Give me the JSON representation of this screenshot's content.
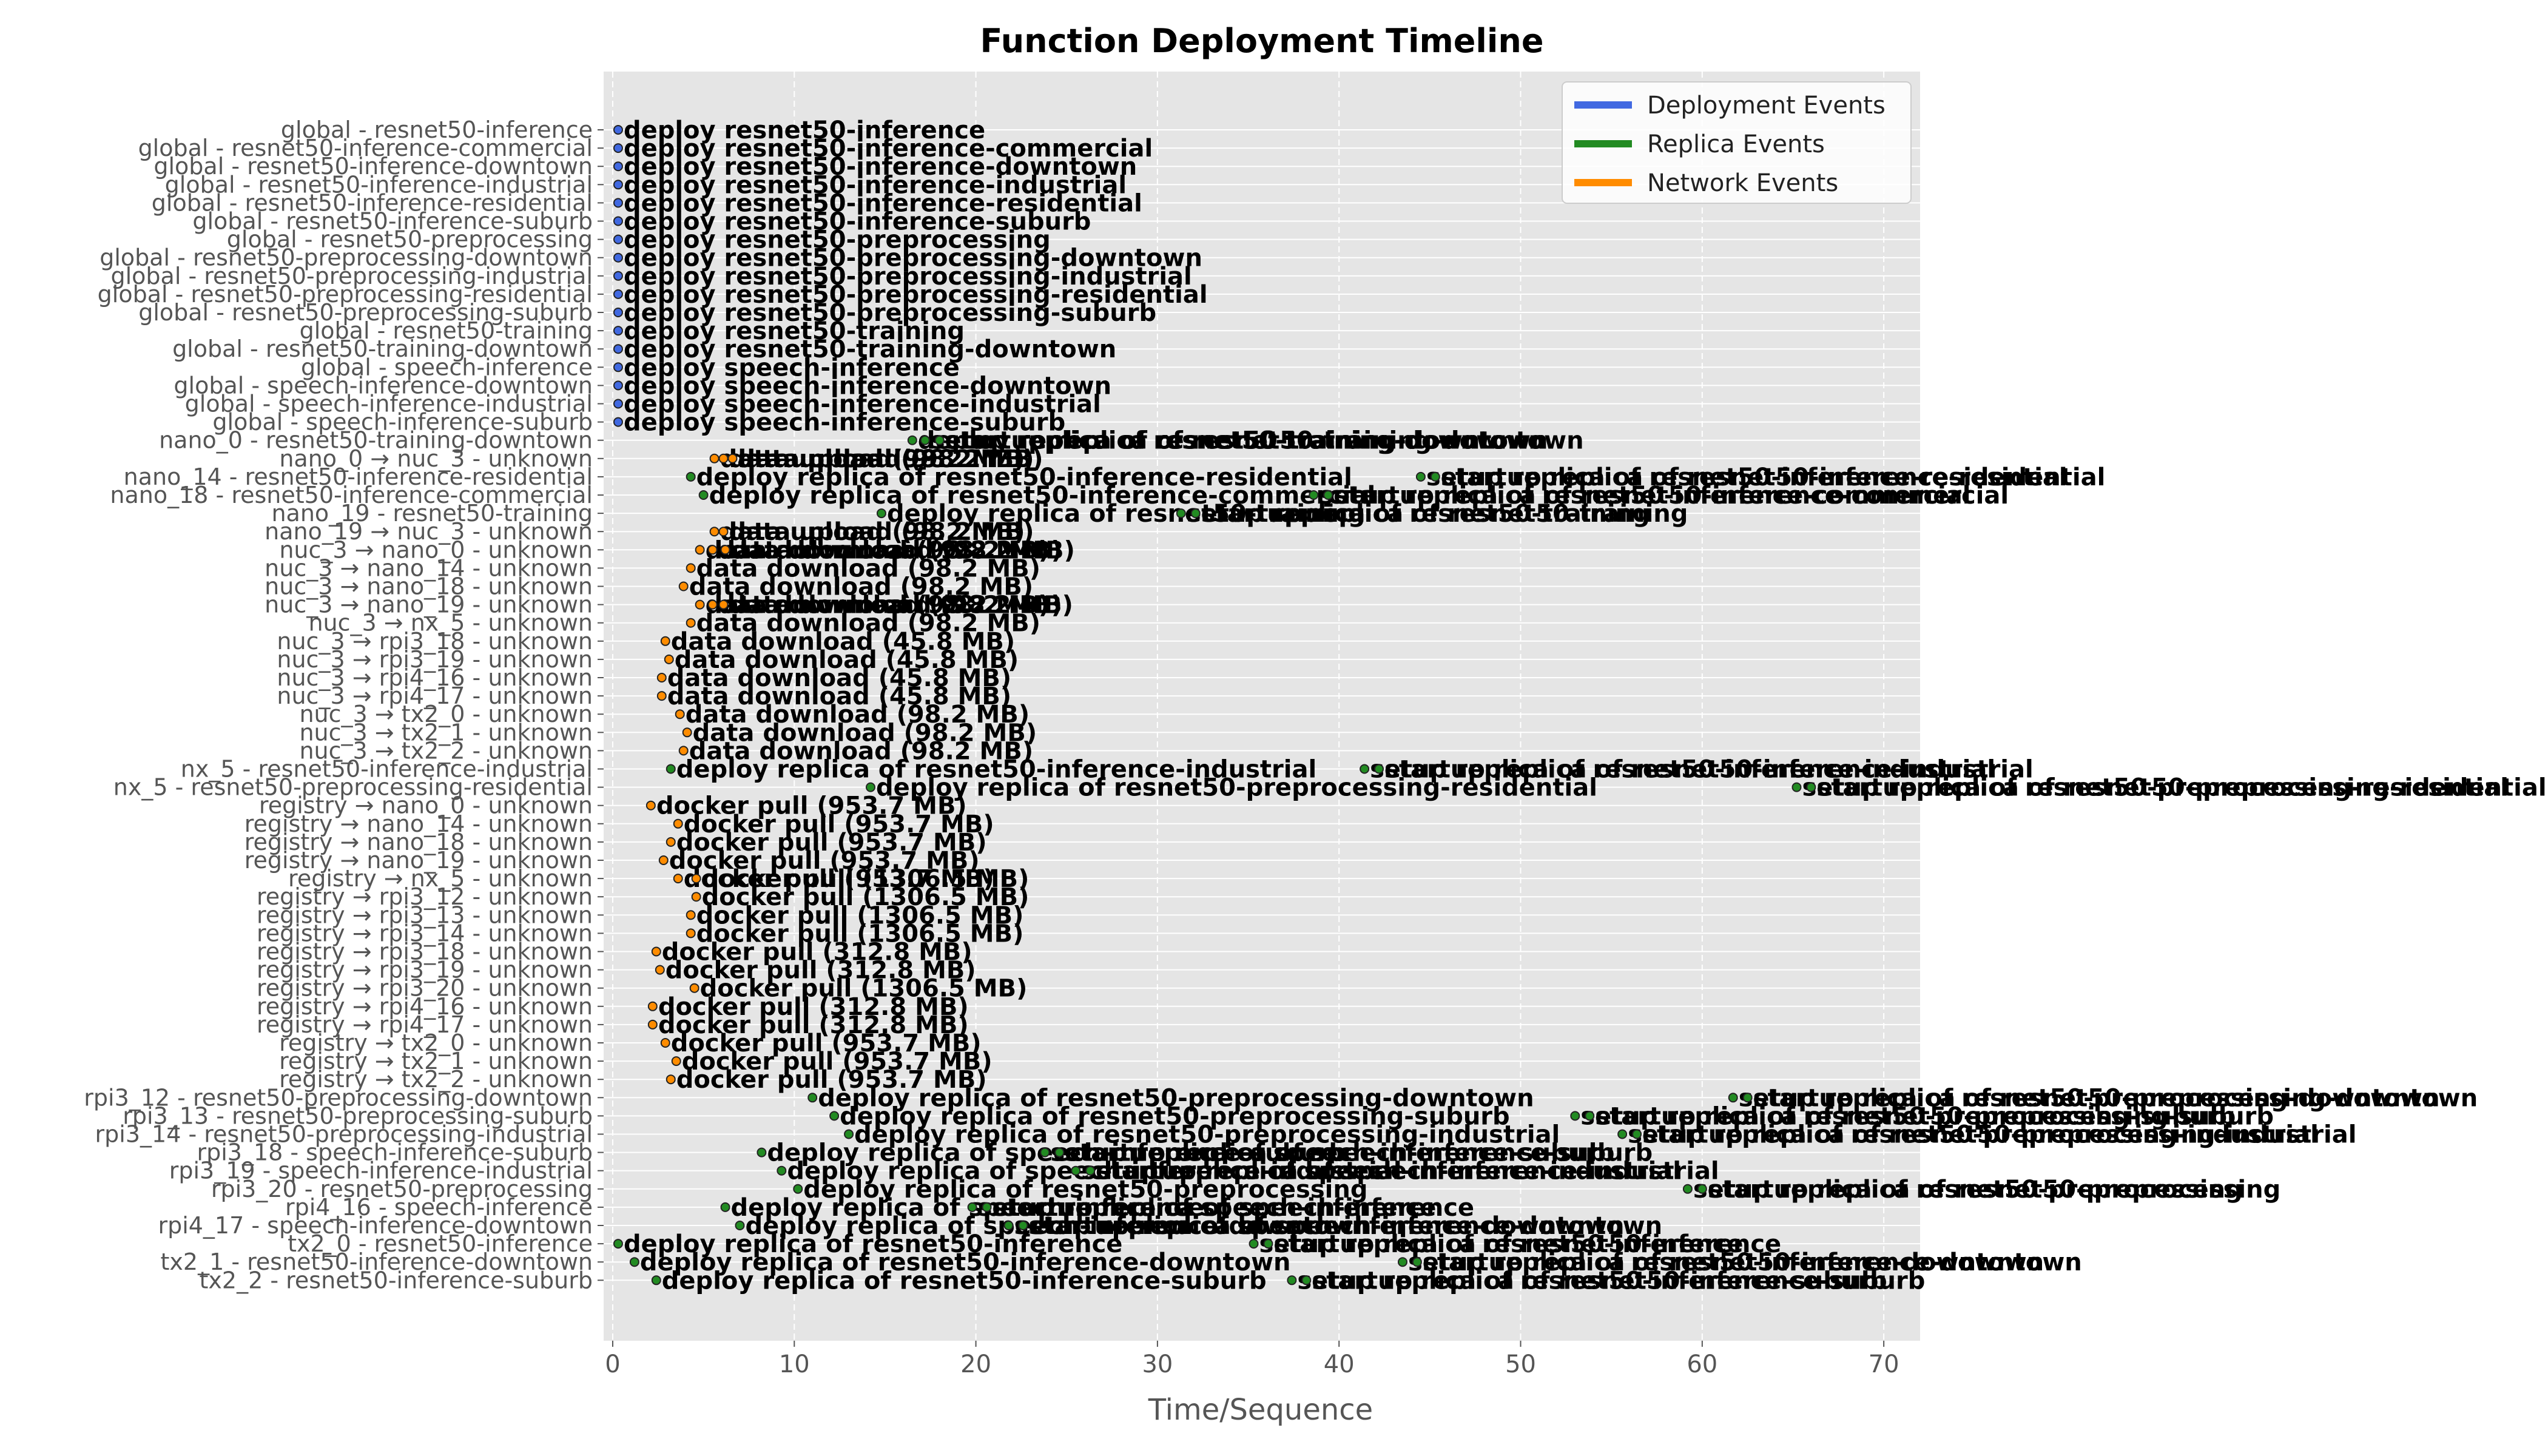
{
  "chart_data": {
    "type": "timeline",
    "title": "Function Deployment Timeline",
    "xlabel": "Time/Sequence",
    "ylabel": "",
    "xlim": [
      -0.5,
      72
    ],
    "xticks": [
      0,
      10,
      20,
      30,
      40,
      50,
      60,
      70
    ],
    "grid": true,
    "legend_position": "top-right",
    "colors": {
      "deployment": "#4169e1",
      "replica": "#228b22",
      "network": "#ff8c00",
      "plot_bg": "#e5e5e5",
      "grid": "#ffffff",
      "marker_edge": "#222222"
    },
    "legend": [
      {
        "label": "Deployment Events",
        "color": "#4169e1"
      },
      {
        "label": "Replica Events",
        "color": "#228b22"
      },
      {
        "label": "Network Events",
        "color": "#ff8c00"
      }
    ],
    "rows": [
      "global - resnet50-inference",
      "global - resnet50-inference-commercial",
      "global - resnet50-inference-downtown",
      "global - resnet50-inference-industrial",
      "global - resnet50-inference-residential",
      "global - resnet50-inference-suburb",
      "global - resnet50-preprocessing",
      "global - resnet50-preprocessing-downtown",
      "global - resnet50-preprocessing-industrial",
      "global - resnet50-preprocessing-residential",
      "global - resnet50-preprocessing-suburb",
      "global - resnet50-training",
      "global - resnet50-training-downtown",
      "global - speech-inference",
      "global - speech-inference-downtown",
      "global - speech-inference-industrial",
      "global - speech-inference-suburb",
      "nano_0 - resnet50-training-downtown",
      "nano_0 → nuc_3 - unknown",
      "nano_14 - resnet50-inference-residential",
      "nano_18 - resnet50-inference-commercial",
      "nano_19 - resnet50-training",
      "nano_19 → nuc_3 - unknown",
      "nuc_3 → nano_0 - unknown",
      "nuc_3 → nano_14 - unknown",
      "nuc_3 → nano_18 - unknown",
      "nuc_3 → nano_19 - unknown",
      "nuc_3 → nx_5 - unknown",
      "nuc_3 → rpi3_18 - unknown",
      "nuc_3 → rpi3_19 - unknown",
      "nuc_3 → rpi4_16 - unknown",
      "nuc_3 → rpi4_17 - unknown",
      "nuc_3 → tx2_0 - unknown",
      "nuc_3 → tx2_1 - unknown",
      "nuc_3 → tx2_2 - unknown",
      "nx_5 - resnet50-inference-industrial",
      "nx_5 - resnet50-preprocessing-residential",
      "registry → nano_0 - unknown",
      "registry → nano_14 - unknown",
      "registry → nano_18 - unknown",
      "registry → nano_19 - unknown",
      "registry → nx_5 - unknown",
      "registry → rpi3_12 - unknown",
      "registry → rpi3_13 - unknown",
      "registry → rpi3_14 - unknown",
      "registry → rpi3_18 - unknown",
      "registry → rpi3_19 - unknown",
      "registry → rpi3_20 - unknown",
      "registry → rpi4_16 - unknown",
      "registry → rpi4_17 - unknown",
      "registry → tx2_0 - unknown",
      "registry → tx2_1 - unknown",
      "registry → tx2_2 - unknown",
      "rpi3_12 - resnet50-preprocessing-downtown",
      "rpi3_13 - resnet50-preprocessing-suburb",
      "rpi3_14 - resnet50-preprocessing-industrial",
      "rpi3_18 - speech-inference-suburb",
      "rpi3_19 - speech-inference-industrial",
      "rpi3_20 - resnet50-preprocessing",
      "rpi4_16 - speech-inference",
      "rpi4_17 - speech-inference-downtown",
      "tx2_0 - resnet50-inference",
      "tx2_1 - resnet50-inference-downtown",
      "tx2_2 - resnet50-inference-suburb"
    ],
    "events": [
      {
        "row": 0,
        "x": 0.3,
        "kind": "deployment",
        "label": "deploy resnet50-inference"
      },
      {
        "row": 1,
        "x": 0.3,
        "kind": "deployment",
        "label": "deploy resnet50-inference-commercial"
      },
      {
        "row": 2,
        "x": 0.3,
        "kind": "deployment",
        "label": "deploy resnet50-inference-downtown"
      },
      {
        "row": 3,
        "x": 0.3,
        "kind": "deployment",
        "label": "deploy resnet50-inference-industrial"
      },
      {
        "row": 4,
        "x": 0.3,
        "kind": "deployment",
        "label": "deploy resnet50-inference-residential"
      },
      {
        "row": 5,
        "x": 0.3,
        "kind": "deployment",
        "label": "deploy resnet50-inference-suburb"
      },
      {
        "row": 6,
        "x": 0.3,
        "kind": "deployment",
        "label": "deploy resnet50-preprocessing"
      },
      {
        "row": 7,
        "x": 0.3,
        "kind": "deployment",
        "label": "deploy resnet50-preprocessing-downtown"
      },
      {
        "row": 8,
        "x": 0.3,
        "kind": "deployment",
        "label": "deploy resnet50-preprocessing-industrial"
      },
      {
        "row": 9,
        "x": 0.3,
        "kind": "deployment",
        "label": "deploy resnet50-preprocessing-residential"
      },
      {
        "row": 10,
        "x": 0.3,
        "kind": "deployment",
        "label": "deploy resnet50-preprocessing-suburb"
      },
      {
        "row": 11,
        "x": 0.3,
        "kind": "deployment",
        "label": "deploy resnet50-training"
      },
      {
        "row": 12,
        "x": 0.3,
        "kind": "deployment",
        "label": "deploy resnet50-training-downtown"
      },
      {
        "row": 13,
        "x": 0.3,
        "kind": "deployment",
        "label": "deploy speech-inference"
      },
      {
        "row": 14,
        "x": 0.3,
        "kind": "deployment",
        "label": "deploy speech-inference-downtown"
      },
      {
        "row": 15,
        "x": 0.3,
        "kind": "deployment",
        "label": "deploy speech-inference-industrial"
      },
      {
        "row": 16,
        "x": 0.3,
        "kind": "deployment",
        "label": "deploy speech-inference-suburb"
      },
      {
        "row": 17,
        "x": 16.5,
        "kind": "replica",
        "label": "deploy replica of resnet50-training-downtown"
      },
      {
        "row": 17,
        "x": 17.2,
        "kind": "replica",
        "label": "setup replica of resnet50-training-downtown"
      },
      {
        "row": 17,
        "x": 18.0,
        "kind": "replica",
        "label": "startup replica of resnet50-training-downtown"
      },
      {
        "row": 18,
        "x": 5.6,
        "kind": "network",
        "label": "data upload (98.2 MB)"
      },
      {
        "row": 18,
        "x": 6.1,
        "kind": "network",
        "label": "data upload (98.2 MB)"
      },
      {
        "row": 18,
        "x": 6.6,
        "kind": "network",
        "label": "data upload (98.2 MB)"
      },
      {
        "row": 19,
        "x": 4.3,
        "kind": "replica",
        "label": "deploy replica of resnet50-inference-residential"
      },
      {
        "row": 19,
        "x": 44.5,
        "kind": "replica",
        "label": "setup replica of resnet50-inference-residential"
      },
      {
        "row": 19,
        "x": 45.3,
        "kind": "replica",
        "label": "startup replica of resnet50-inference-residential"
      },
      {
        "row": 20,
        "x": 5.0,
        "kind": "replica",
        "label": "deploy replica of resnet50-inference-commercial"
      },
      {
        "row": 20,
        "x": 38.6,
        "kind": "replica",
        "label": "setup replica of resnet50-inference-commercial"
      },
      {
        "row": 20,
        "x": 39.4,
        "kind": "replica",
        "label": "startup replica of resnet50-inference-commercial"
      },
      {
        "row": 21,
        "x": 14.8,
        "kind": "replica",
        "label": "deploy replica of resnet50-training"
      },
      {
        "row": 21,
        "x": 31.3,
        "kind": "replica",
        "label": "setup replica of resnet50-training"
      },
      {
        "row": 21,
        "x": 32.1,
        "kind": "replica",
        "label": "startup replica of resnet50-training"
      },
      {
        "row": 22,
        "x": 5.6,
        "kind": "network",
        "label": "data upload (98.2 MB)"
      },
      {
        "row": 22,
        "x": 6.1,
        "kind": "network",
        "label": "data upload (98.2 MB)"
      },
      {
        "row": 23,
        "x": 4.8,
        "kind": "network",
        "label": "data download (98.2 MB)"
      },
      {
        "row": 23,
        "x": 5.5,
        "kind": "network",
        "label": "data download (98.2 MB)"
      },
      {
        "row": 23,
        "x": 6.2,
        "kind": "network",
        "label": "data download (98.2 MB)"
      },
      {
        "row": 24,
        "x": 4.3,
        "kind": "network",
        "label": "data download (98.2 MB)"
      },
      {
        "row": 25,
        "x": 3.9,
        "kind": "network",
        "label": "data download (98.2 MB)"
      },
      {
        "row": 26,
        "x": 4.8,
        "kind": "network",
        "label": "data download (98.2 MB)"
      },
      {
        "row": 26,
        "x": 5.5,
        "kind": "network",
        "label": "data download (98.2 MB)"
      },
      {
        "row": 26,
        "x": 6.1,
        "kind": "network",
        "label": "data download (98.2 MB)"
      },
      {
        "row": 27,
        "x": 4.3,
        "kind": "network",
        "label": "data download (98.2 MB)"
      },
      {
        "row": 28,
        "x": 2.9,
        "kind": "network",
        "label": "data download (45.8 MB)"
      },
      {
        "row": 29,
        "x": 3.1,
        "kind": "network",
        "label": "data download (45.8 MB)"
      },
      {
        "row": 30,
        "x": 2.7,
        "kind": "network",
        "label": "data download (45.8 MB)"
      },
      {
        "row": 31,
        "x": 2.7,
        "kind": "network",
        "label": "data download (45.8 MB)"
      },
      {
        "row": 32,
        "x": 3.7,
        "kind": "network",
        "label": "data download (98.2 MB)"
      },
      {
        "row": 33,
        "x": 4.1,
        "kind": "network",
        "label": "data download (98.2 MB)"
      },
      {
        "row": 34,
        "x": 3.9,
        "kind": "network",
        "label": "data download (98.2 MB)"
      },
      {
        "row": 35,
        "x": 3.2,
        "kind": "replica",
        "label": "deploy replica of resnet50-inference-industrial"
      },
      {
        "row": 35,
        "x": 41.4,
        "kind": "replica",
        "label": "setup replica of resnet50-inference-industrial"
      },
      {
        "row": 35,
        "x": 42.2,
        "kind": "replica",
        "label": "startup replica of resnet50-inference-industrial"
      },
      {
        "row": 36,
        "x": 14.2,
        "kind": "replica",
        "label": "deploy replica of resnet50-preprocessing-residential"
      },
      {
        "row": 36,
        "x": 65.2,
        "kind": "replica",
        "label": "setup replica of resnet50-preprocessing-residential"
      },
      {
        "row": 36,
        "x": 66.0,
        "kind": "replica",
        "label": "startup replica of resnet50-preprocessing-residential"
      },
      {
        "row": 37,
        "x": 2.1,
        "kind": "network",
        "label": "docker pull (953.7 MB)"
      },
      {
        "row": 38,
        "x": 3.6,
        "kind": "network",
        "label": "docker pull (953.7 MB)"
      },
      {
        "row": 39,
        "x": 3.2,
        "kind": "network",
        "label": "docker pull (953.7 MB)"
      },
      {
        "row": 40,
        "x": 2.8,
        "kind": "network",
        "label": "docker pull (953.7 MB)"
      },
      {
        "row": 41,
        "x": 3.6,
        "kind": "network",
        "label": "docker pull (953.7 MB)"
      },
      {
        "row": 41,
        "x": 4.6,
        "kind": "network",
        "label": "docker pull (1306.5 MB)"
      },
      {
        "row": 42,
        "x": 4.6,
        "kind": "network",
        "label": "docker pull (1306.5 MB)"
      },
      {
        "row": 43,
        "x": 4.3,
        "kind": "network",
        "label": "docker pull (1306.5 MB)"
      },
      {
        "row": 44,
        "x": 4.3,
        "kind": "network",
        "label": "docker pull (1306.5 MB)"
      },
      {
        "row": 45,
        "x": 2.4,
        "kind": "network",
        "label": "docker pull (312.8 MB)"
      },
      {
        "row": 46,
        "x": 2.6,
        "kind": "network",
        "label": "docker pull (312.8 MB)"
      },
      {
        "row": 47,
        "x": 4.5,
        "kind": "network",
        "label": "docker pull (1306.5 MB)"
      },
      {
        "row": 48,
        "x": 2.2,
        "kind": "network",
        "label": "docker pull (312.8 MB)"
      },
      {
        "row": 49,
        "x": 2.2,
        "kind": "network",
        "label": "docker pull (312.8 MB)"
      },
      {
        "row": 50,
        "x": 2.9,
        "kind": "network",
        "label": "docker pull (953.7 MB)"
      },
      {
        "row": 51,
        "x": 3.5,
        "kind": "network",
        "label": "docker pull (953.7 MB)"
      },
      {
        "row": 52,
        "x": 3.2,
        "kind": "network",
        "label": "docker pull (953.7 MB)"
      },
      {
        "row": 53,
        "x": 11.0,
        "kind": "replica",
        "label": "deploy replica of resnet50-preprocessing-downtown"
      },
      {
        "row": 53,
        "x": 61.7,
        "kind": "replica",
        "label": "setup replica of resnet50-preprocessing-downtown"
      },
      {
        "row": 53,
        "x": 62.5,
        "kind": "replica",
        "label": "startup replica of resnet50-preprocessing-downtown"
      },
      {
        "row": 54,
        "x": 12.2,
        "kind": "replica",
        "label": "deploy replica of resnet50-preprocessing-suburb"
      },
      {
        "row": 54,
        "x": 53.0,
        "kind": "replica",
        "label": "setup replica of resnet50-preprocessing-suburb"
      },
      {
        "row": 54,
        "x": 53.8,
        "kind": "replica",
        "label": "startup replica of resnet50-preprocessing-suburb"
      },
      {
        "row": 55,
        "x": 13.0,
        "kind": "replica",
        "label": "deploy replica of resnet50-preprocessing-industrial"
      },
      {
        "row": 55,
        "x": 55.6,
        "kind": "replica",
        "label": "setup replica of resnet50-preprocessing-industrial"
      },
      {
        "row": 55,
        "x": 56.4,
        "kind": "replica",
        "label": "startup replica of resnet50-preprocessing-industrial"
      },
      {
        "row": 56,
        "x": 8.2,
        "kind": "replica",
        "label": "deploy replica of speech-inference-suburb"
      },
      {
        "row": 56,
        "x": 23.8,
        "kind": "replica",
        "label": "setup replica of speech-inference-suburb"
      },
      {
        "row": 56,
        "x": 24.6,
        "kind": "replica",
        "label": "startup replica of speech-inference-suburb"
      },
      {
        "row": 57,
        "x": 9.3,
        "kind": "replica",
        "label": "deploy replica of speech-inference-industrial"
      },
      {
        "row": 57,
        "x": 25.5,
        "kind": "replica",
        "label": "setup replica of speech-inference-industrial"
      },
      {
        "row": 57,
        "x": 26.3,
        "kind": "replica",
        "label": "startup replica of speech-inference-industrial"
      },
      {
        "row": 58,
        "x": 10.2,
        "kind": "replica",
        "label": "deploy replica of resnet50-preprocessing"
      },
      {
        "row": 58,
        "x": 59.2,
        "kind": "replica",
        "label": "setup replica of resnet50-preprocessing"
      },
      {
        "row": 58,
        "x": 60.0,
        "kind": "replica",
        "label": "startup replica of resnet50-preprocessing"
      },
      {
        "row": 59,
        "x": 6.2,
        "kind": "replica",
        "label": "deploy replica of speech-inference"
      },
      {
        "row": 59,
        "x": 19.8,
        "kind": "replica",
        "label": "setup replica of speech-inference"
      },
      {
        "row": 59,
        "x": 20.6,
        "kind": "replica",
        "label": "startup replica of speech-inference"
      },
      {
        "row": 60,
        "x": 7.0,
        "kind": "replica",
        "label": "deploy replica of speech-inference-downtown"
      },
      {
        "row": 60,
        "x": 21.8,
        "kind": "replica",
        "label": "setup replica of speech-inference-downtown"
      },
      {
        "row": 60,
        "x": 22.6,
        "kind": "replica",
        "label": "startup replica of speech-inference-downtown"
      },
      {
        "row": 61,
        "x": 0.3,
        "kind": "replica",
        "label": "deploy replica of resnet50-inference"
      },
      {
        "row": 61,
        "x": 35.3,
        "kind": "replica",
        "label": "setup replica of resnet50-inference"
      },
      {
        "row": 61,
        "x": 36.1,
        "kind": "replica",
        "label": "startup replica of resnet50-inference"
      },
      {
        "row": 62,
        "x": 1.2,
        "kind": "replica",
        "label": "deploy replica of resnet50-inference-downtown"
      },
      {
        "row": 62,
        "x": 43.5,
        "kind": "replica",
        "label": "setup replica of resnet50-inference-downtown"
      },
      {
        "row": 62,
        "x": 44.3,
        "kind": "replica",
        "label": "startup replica of resnet50-inference-downtown"
      },
      {
        "row": 63,
        "x": 2.4,
        "kind": "replica",
        "label": "deploy replica of resnet50-inference-suburb"
      },
      {
        "row": 63,
        "x": 37.4,
        "kind": "replica",
        "label": "setup replica of resnet50-inference-suburb"
      },
      {
        "row": 63,
        "x": 38.2,
        "kind": "replica",
        "label": "startup replica of resnet50-inference-suburb"
      }
    ]
  }
}
